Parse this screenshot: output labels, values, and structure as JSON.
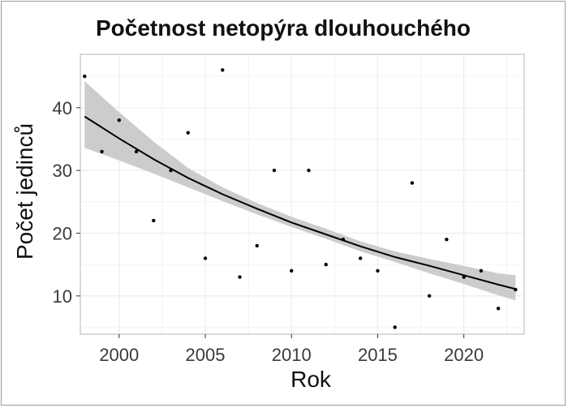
{
  "chart_data": {
    "type": "scatter",
    "title": "Početnost netopýra dlouhouchého",
    "xlabel": "Rok",
    "ylabel": "Počet jedinců",
    "xlim": [
      1997.75,
      2023.5
    ],
    "ylim": [
      3.9,
      48.5
    ],
    "x_ticks": [
      2000,
      2005,
      2010,
      2015,
      2020
    ],
    "y_ticks": [
      10,
      20,
      30,
      40
    ],
    "grid": true,
    "legend": "none",
    "points": {
      "x": [
        1998,
        1999,
        2000,
        2001,
        2002,
        2003,
        2004,
        2005,
        2006,
        2007,
        2008,
        2009,
        2010,
        2011,
        2012,
        2013,
        2014,
        2015,
        2016,
        2017,
        2018,
        2019,
        2020,
        2021,
        2022,
        2023
      ],
      "y": [
        45,
        33,
        38,
        33,
        22,
        30,
        36,
        16,
        46,
        13,
        18,
        30,
        14,
        30,
        15,
        19,
        16,
        14,
        5,
        28,
        10,
        19,
        13,
        14,
        8,
        11
      ]
    },
    "trend": {
      "x": [
        1998,
        2000,
        2002,
        2004,
        2006,
        2008,
        2010,
        2012,
        2014,
        2016,
        2018,
        2020,
        2022,
        2023
      ],
      "y": [
        38.6,
        35.1,
        31.8,
        28.8,
        26.2,
        23.9,
        21.7,
        19.8,
        17.9,
        16.2,
        14.8,
        13.3,
        11.8,
        11.1
      ],
      "ci_low": [
        33.6,
        31.6,
        29.5,
        27.3,
        25.1,
        23.0,
        21.0,
        19.1,
        17.1,
        15.4,
        13.6,
        11.9,
        10.1,
        9.3
      ],
      "ci_high": [
        44.2,
        39.3,
        34.6,
        30.4,
        27.3,
        24.8,
        22.6,
        20.7,
        18.7,
        17.1,
        15.9,
        14.8,
        13.6,
        13.3
      ]
    },
    "colors": {
      "points": "#000000",
      "line": "#000000",
      "band": "#cccccc",
      "grid": "#ebebeb",
      "panel_border": "#b5b5b5"
    }
  }
}
